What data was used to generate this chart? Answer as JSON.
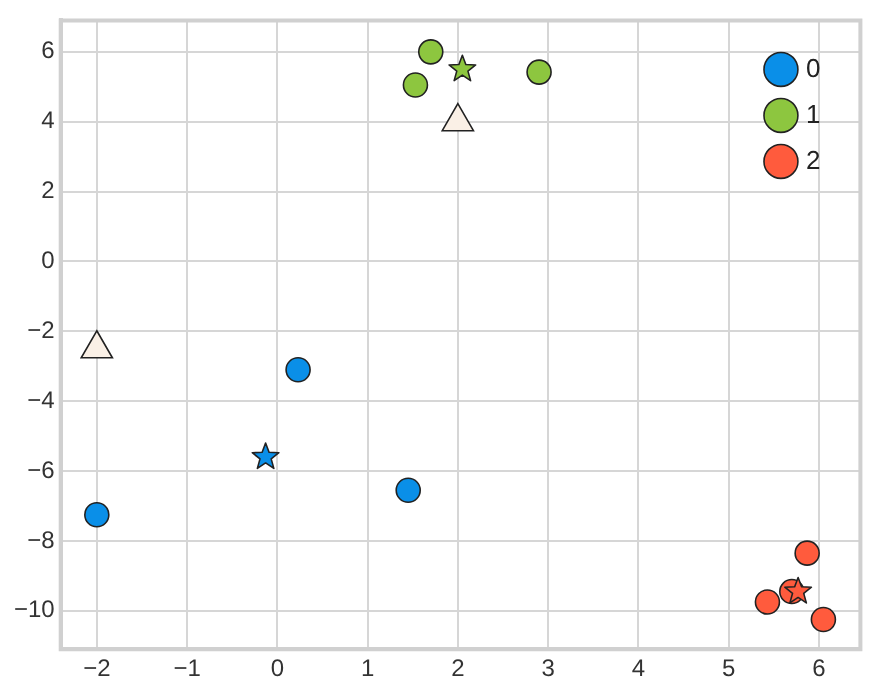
{
  "chart_data": {
    "type": "scatter",
    "xlim": [
      -2.4,
      6.46
    ],
    "ylim": [
      -11.1,
      6.9
    ],
    "xticks": [
      -2,
      -1,
      0,
      1,
      2,
      3,
      4,
      5,
      6
    ],
    "yticks": [
      -10,
      -8,
      -6,
      -4,
      -2,
      0,
      2,
      4,
      6
    ],
    "grid": true,
    "legend": "top right",
    "marker": "circle",
    "series": [
      {
        "name": "0",
        "color": "#0a8fe8",
        "x": [
          -2,
          0.23,
          1.45
        ],
        "values": [
          -7.25,
          -3.1,
          -6.55
        ]
      },
      {
        "name": "1",
        "color": "#8dc63f",
        "x": [
          1.53,
          1.7,
          2.9
        ],
        "values": [
          5.05,
          6.0,
          5.42
        ]
      },
      {
        "name": "2",
        "color": "#ff5b3d",
        "x": [
          5.43,
          5.7,
          5.87,
          6.05
        ],
        "values": [
          -9.75,
          -9.45,
          -8.35,
          -10.25
        ]
      },
      {
        "marker": "star",
        "colors": [
          "#0a8fe8",
          "#8dc63f",
          "#ff5b3d"
        ],
        "x": [
          -0.13,
          2.05,
          5.77
        ],
        "values": [
          -5.6,
          5.5,
          -9.45
        ]
      },
      {
        "marker": "triangle",
        "color": "#faf0e6",
        "x": [
          -2,
          2
        ],
        "values": [
          -2.5,
          4.0
        ]
      }
    ]
  }
}
